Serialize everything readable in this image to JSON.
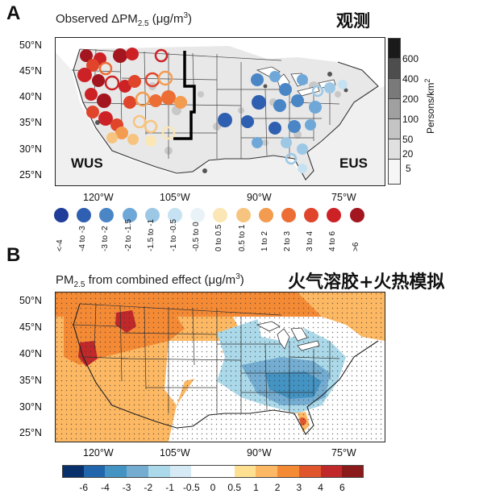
{
  "panelA": {
    "letter": "A",
    "title": "Observed ΔPM",
    "title_sub": "2.5",
    "title_units": "(μg/m",
    "title_units_sup": "3",
    "title_units_end": ")",
    "cn_label": "观测",
    "lat_labels": [
      "50°N",
      "45°N",
      "40°N",
      "35°N",
      "30°N",
      "25°N"
    ],
    "lon_labels": [
      "120°W",
      "105°W",
      "90°W",
      "75°W"
    ],
    "region_west": "WUS",
    "region_east": "EUS",
    "density_ticks": [
      "600",
      "400",
      "200",
      "100",
      "50",
      "20",
      "5"
    ],
    "density_title": "Persons/km",
    "density_title_sup": "2",
    "legend": [
      {
        "label": "<-4",
        "color": "#1f3d99"
      },
      {
        "label": "-4 to -3",
        "color": "#2f5fb0"
      },
      {
        "label": "-3 to -2",
        "color": "#4a86c6"
      },
      {
        "label": "-2 to -1.5",
        "color": "#6fa8d8"
      },
      {
        "label": "-1.5 to -1",
        "color": "#9cc8e6"
      },
      {
        "label": "-1 to -0.5",
        "color": "#c6e2f2"
      },
      {
        "label": "-0.5 to 0",
        "color": "#e9f3f7"
      },
      {
        "label": "0 to 0.5",
        "color": "#fbe6b5"
      },
      {
        "label": "0.5 to 1",
        "color": "#f7c480"
      },
      {
        "label": "1 to 2",
        "color": "#f39c50"
      },
      {
        "label": "2 to 3",
        "color": "#ec6e35"
      },
      {
        "label": "3 to 4",
        "color": "#e0452b"
      },
      {
        "label": "4 to 6",
        "color": "#cc2226"
      },
      {
        "label": ">6",
        "color": "#a3161f"
      }
    ]
  },
  "panelB": {
    "letter": "B",
    "title": "PM",
    "title_sub": "2.5",
    "title_rest": " from combined effect (μg/m",
    "title_sup": "3",
    "title_end": ")",
    "cn_label": "火气溶胶+火热模拟",
    "lat_labels": [
      "50°N",
      "45°N",
      "40°N",
      "35°N",
      "30°N",
      "25°N"
    ],
    "lon_labels": [
      "120°W",
      "105°W",
      "90°W",
      "75°W"
    ],
    "colorbar_labels": [
      "-6",
      "-4",
      "-3",
      "-2",
      "-1",
      "-0.5",
      "0",
      "0.5",
      "1",
      "2",
      "3",
      "4",
      "6"
    ],
    "colorbar_colors": [
      "#08306b",
      "#2166ac",
      "#4393c3",
      "#74add1",
      "#abd9e9",
      "#d6eaf5",
      "#ffffff",
      "#ffffff",
      "#fee090",
      "#fdb863",
      "#f58a35",
      "#e0552b",
      "#c0282a",
      "#8b1a1a"
    ]
  }
}
